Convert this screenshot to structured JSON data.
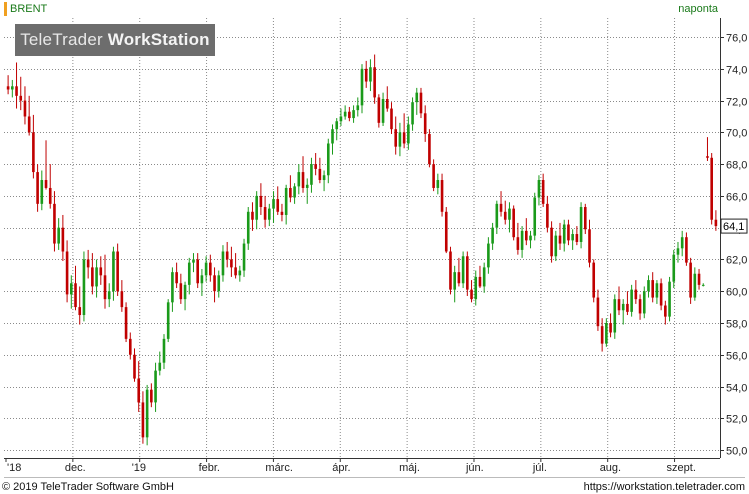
{
  "header": {
    "symbol": "BRENT",
    "interval": "naponta"
  },
  "brand": {
    "part1": "TeleTrader ",
    "part2": "WorkStation"
  },
  "footer": {
    "copyright": "© 2019 TeleTrader Software GmbH",
    "url": "https://workstation.teletrader.com"
  },
  "colors": {
    "up": "#1a9a1a",
    "down": "#c00000",
    "grid": "#8a8a8a",
    "header_text": "#1a7a1a",
    "brand_bg": "#6d6d6d"
  },
  "chart_data": {
    "type": "candlestick",
    "y_axis_side": "right",
    "ylim": [
      49.5,
      77.2
    ],
    "y_ticks": [
      "76,0",
      "74,0",
      "72,0",
      "70,0",
      "68,0",
      "66,0",
      "64,0",
      "62,0",
      "60,0",
      "58,0",
      "56,0",
      "54,0",
      "52,0",
      "50,0"
    ],
    "x_labels": [
      "'18",
      "dec.",
      "'19",
      "febr.",
      "márc.",
      "ápr.",
      "máj.",
      "jún.",
      "júl.",
      "aug.",
      "szept."
    ],
    "last_price": "64,1",
    "grid": true,
    "series": [
      {
        "values": [
          [
            72.9,
            73.6,
            72.4,
            72.7
          ],
          [
            72.7,
            73.3,
            72.2,
            72.9
          ],
          [
            72.9,
            74.4,
            71.5,
            72.3
          ],
          [
            72.3,
            73.5,
            71.4,
            72.0
          ],
          [
            72.0,
            72.9,
            70.5,
            71.0
          ],
          [
            71.0,
            72.3,
            69.8,
            70.0
          ],
          [
            70.0,
            71.1,
            67.1,
            67.5
          ],
          [
            67.5,
            68.0,
            65.0,
            65.5
          ],
          [
            65.5,
            67.6,
            65.1,
            67.0
          ],
          [
            67.0,
            69.5,
            66.4,
            66.5
          ],
          [
            66.5,
            68.0,
            65.2,
            65.5
          ],
          [
            65.5,
            66.3,
            62.5,
            63.0
          ],
          [
            63.0,
            64.6,
            62.6,
            64.0
          ],
          [
            64.0,
            64.8,
            61.9,
            62.5
          ],
          [
            62.5,
            63.2,
            59.3,
            59.8
          ],
          [
            59.8,
            61.0,
            58.9,
            60.5
          ],
          [
            60.5,
            61.6,
            58.8,
            59.0
          ],
          [
            59.0,
            60.3,
            57.9,
            58.5
          ],
          [
            58.5,
            62.5,
            58.1,
            62.0
          ],
          [
            62.0,
            62.6,
            60.8,
            61.5
          ],
          [
            61.5,
            62.4,
            59.8,
            60.3
          ],
          [
            60.3,
            62.0,
            59.6,
            61.5
          ],
          [
            61.5,
            62.2,
            60.4,
            61.0
          ],
          [
            61.0,
            62.3,
            58.9,
            59.5
          ],
          [
            59.5,
            60.5,
            59.0,
            60.0
          ],
          [
            60.0,
            62.8,
            59.4,
            62.5
          ],
          [
            62.5,
            63.0,
            59.7,
            60.0
          ],
          [
            60.0,
            60.7,
            58.7,
            59.0
          ],
          [
            59.0,
            59.3,
            56.8,
            57.0
          ],
          [
            57.0,
            57.4,
            55.7,
            56.0
          ],
          [
            56.0,
            56.4,
            54.3,
            54.5
          ],
          [
            54.5,
            55.6,
            52.4,
            53.0
          ],
          [
            53.0,
            53.7,
            50.4,
            50.8
          ],
          [
            50.8,
            54.1,
            50.3,
            53.8
          ],
          [
            53.8,
            54.2,
            52.7,
            53.0
          ],
          [
            53.0,
            55.5,
            52.4,
            55.0
          ],
          [
            55.0,
            56.2,
            54.7,
            55.5
          ],
          [
            55.5,
            57.3,
            55.1,
            57.0
          ],
          [
            57.0,
            59.5,
            56.8,
            59.3
          ],
          [
            59.3,
            61.5,
            58.7,
            61.2
          ],
          [
            61.2,
            61.8,
            60.2,
            60.5
          ],
          [
            60.5,
            61.1,
            59.2,
            59.5
          ],
          [
            59.5,
            60.6,
            58.8,
            60.4
          ],
          [
            60.4,
            62.1,
            59.8,
            61.8
          ],
          [
            61.8,
            62.4,
            61.2,
            62.0
          ],
          [
            62.0,
            62.4,
            60.2,
            60.5
          ],
          [
            60.5,
            61.4,
            59.7,
            61.0
          ],
          [
            61.0,
            62.2,
            60.6,
            61.8
          ],
          [
            61.8,
            62.3,
            60.6,
            61.0
          ],
          [
            61.0,
            61.5,
            59.3,
            60.0
          ],
          [
            60.0,
            61.3,
            59.6,
            61.0
          ],
          [
            61.0,
            62.9,
            60.6,
            62.5
          ],
          [
            62.5,
            63.1,
            61.5,
            62.0
          ],
          [
            62.0,
            62.8,
            60.9,
            61.5
          ],
          [
            61.5,
            62.4,
            60.8,
            61.0
          ],
          [
            61.0,
            61.6,
            60.6,
            61.3
          ],
          [
            61.3,
            63.3,
            60.9,
            63.0
          ],
          [
            63.0,
            65.3,
            62.6,
            65.0
          ],
          [
            65.0,
            65.6,
            63.8,
            64.5
          ],
          [
            64.5,
            66.3,
            63.9,
            66.0
          ],
          [
            66.0,
            66.8,
            64.8,
            65.3
          ],
          [
            65.3,
            66.0,
            64.0,
            64.5
          ],
          [
            64.5,
            65.5,
            64.1,
            65.2
          ],
          [
            65.2,
            66.3,
            64.3,
            65.8
          ],
          [
            65.8,
            66.6,
            64.8,
            65.0
          ],
          [
            65.0,
            65.5,
            64.4,
            64.8
          ],
          [
            64.8,
            66.7,
            64.2,
            66.5
          ],
          [
            66.5,
            67.3,
            65.6,
            65.9
          ],
          [
            65.9,
            66.8,
            65.5,
            66.6
          ],
          [
            66.6,
            68.0,
            66.1,
            67.5
          ],
          [
            67.5,
            68.5,
            66.2,
            66.5
          ],
          [
            66.5,
            67.1,
            65.5,
            66.7
          ],
          [
            66.7,
            68.4,
            66.2,
            68.0
          ],
          [
            68.0,
            68.7,
            67.3,
            67.7
          ],
          [
            67.7,
            68.4,
            66.8,
            67.0
          ],
          [
            67.0,
            67.6,
            66.3,
            67.3
          ],
          [
            67.3,
            69.6,
            66.8,
            69.3
          ],
          [
            69.3,
            70.5,
            68.6,
            70.2
          ],
          [
            70.2,
            70.9,
            69.5,
            70.7
          ],
          [
            70.7,
            71.5,
            70.4,
            71.0
          ],
          [
            71.0,
            71.7,
            70.8,
            71.3
          ],
          [
            71.3,
            71.6,
            70.7,
            70.9
          ],
          [
            70.9,
            71.7,
            70.6,
            71.4
          ],
          [
            71.4,
            72.2,
            71.0,
            71.7
          ],
          [
            71.7,
            74.3,
            71.2,
            74.0
          ],
          [
            74.0,
            74.5,
            72.8,
            73.2
          ],
          [
            73.2,
            74.6,
            72.6,
            74.1
          ],
          [
            74.1,
            74.9,
            71.8,
            72.2
          ],
          [
            72.2,
            72.4,
            70.3,
            70.6
          ],
          [
            70.6,
            72.5,
            70.4,
            72.1
          ],
          [
            72.1,
            72.9,
            71.3,
            71.5
          ],
          [
            71.5,
            71.9,
            69.9,
            70.2
          ],
          [
            70.2,
            71.0,
            68.6,
            69.1
          ],
          [
            69.1,
            70.6,
            68.5,
            70.0
          ],
          [
            70.0,
            71.2,
            69.0,
            69.3
          ],
          [
            69.3,
            71.0,
            68.9,
            70.5
          ],
          [
            70.5,
            72.2,
            70.1,
            71.9
          ],
          [
            71.9,
            72.8,
            71.1,
            72.5
          ],
          [
            72.5,
            72.8,
            70.9,
            71.2
          ],
          [
            71.2,
            71.7,
            69.4,
            69.9
          ],
          [
            69.9,
            70.2,
            67.8,
            68.0
          ],
          [
            68.0,
            68.3,
            66.3,
            66.5
          ],
          [
            66.5,
            67.4,
            66.1,
            67.0
          ],
          [
            67.0,
            67.4,
            64.7,
            65.0
          ],
          [
            65.0,
            65.3,
            62.4,
            62.5
          ],
          [
            62.5,
            62.8,
            59.8,
            60.1
          ],
          [
            60.1,
            61.6,
            59.3,
            61.2
          ],
          [
            61.2,
            62.1,
            60.3,
            60.5
          ],
          [
            60.5,
            62.5,
            60.2,
            62.2
          ],
          [
            62.2,
            62.5,
            59.7,
            60.1
          ],
          [
            60.1,
            60.7,
            59.3,
            59.5
          ],
          [
            59.5,
            61.3,
            59.1,
            60.9
          ],
          [
            60.9,
            61.6,
            60.2,
            60.3
          ],
          [
            60.3,
            61.8,
            59.9,
            61.5
          ],
          [
            61.5,
            63.4,
            61.1,
            63.0
          ],
          [
            63.0,
            64.3,
            62.6,
            64.0
          ],
          [
            64.0,
            65.7,
            63.6,
            65.5
          ],
          [
            65.5,
            66.3,
            64.7,
            65.0
          ],
          [
            65.0,
            65.7,
            64.2,
            64.5
          ],
          [
            64.5,
            65.6,
            63.7,
            65.2
          ],
          [
            65.2,
            65.4,
            63.2,
            63.4
          ],
          [
            63.4,
            64.3,
            62.3,
            62.6
          ],
          [
            62.6,
            64.1,
            62.1,
            63.8
          ],
          [
            63.8,
            64.6,
            62.9,
            63.2
          ],
          [
            63.2,
            63.8,
            62.7,
            63.5
          ],
          [
            63.5,
            66.2,
            63.2,
            65.9
          ],
          [
            65.9,
            67.3,
            65.4,
            67.0
          ],
          [
            67.0,
            67.4,
            65.3,
            65.5
          ],
          [
            65.5,
            66.0,
            63.7,
            64.0
          ],
          [
            64.0,
            64.4,
            61.8,
            62.2
          ],
          [
            62.2,
            63.8,
            61.9,
            63.5
          ],
          [
            63.5,
            64.3,
            62.6,
            63.0
          ],
          [
            63.0,
            64.5,
            62.5,
            64.2
          ],
          [
            64.2,
            64.5,
            62.9,
            63.2
          ],
          [
            63.2,
            63.9,
            62.6,
            63.6
          ],
          [
            63.6,
            64.1,
            62.9,
            63.1
          ],
          [
            63.1,
            65.6,
            62.7,
            65.3
          ],
          [
            65.3,
            65.5,
            63.6,
            63.9
          ],
          [
            63.9,
            64.5,
            61.5,
            61.8
          ],
          [
            61.8,
            62.0,
            59.3,
            59.6
          ],
          [
            59.6,
            60.1,
            57.5,
            57.8
          ],
          [
            57.8,
            58.3,
            56.2,
            56.7
          ],
          [
            56.7,
            58.3,
            56.5,
            58.0
          ],
          [
            58.0,
            58.6,
            57.1,
            57.4
          ],
          [
            57.4,
            59.8,
            57.0,
            59.5
          ],
          [
            59.5,
            60.3,
            58.5,
            58.8
          ],
          [
            58.8,
            59.5,
            57.9,
            59.2
          ],
          [
            59.2,
            60.0,
            58.5,
            58.7
          ],
          [
            58.7,
            60.4,
            58.4,
            60.1
          ],
          [
            60.1,
            60.7,
            59.2,
            59.5
          ],
          [
            59.5,
            59.8,
            58.2,
            58.6
          ],
          [
            58.6,
            60.3,
            58.3,
            60.0
          ],
          [
            60.0,
            61.0,
            59.6,
            60.7
          ],
          [
            60.7,
            61.2,
            59.3,
            59.6
          ],
          [
            59.6,
            60.7,
            59.2,
            60.5
          ],
          [
            60.5,
            60.8,
            58.8,
            59.1
          ],
          [
            59.1,
            59.4,
            57.9,
            58.4
          ],
          [
            58.4,
            60.9,
            58.1,
            60.6
          ],
          [
            60.6,
            62.6,
            60.2,
            62.3
          ],
          [
            62.3,
            63.1,
            61.8,
            62.7
          ],
          [
            62.7,
            63.8,
            62.2,
            63.4
          ],
          [
            63.4,
            63.7,
            61.6,
            61.8
          ],
          [
            61.8,
            62.1,
            59.2,
            59.6
          ],
          [
            59.6,
            61.5,
            59.4,
            61.1
          ],
          [
            61.1,
            61.4,
            60.1,
            60.4
          ],
          [
            60.4,
            60.5,
            60.3,
            60.4
          ],
          [
            68.5,
            69.7,
            68.2,
            68.4
          ],
          [
            68.4,
            68.7,
            64.2,
            64.5
          ],
          [
            64.5,
            65.1,
            63.8,
            64.1
          ]
        ]
      }
    ]
  }
}
